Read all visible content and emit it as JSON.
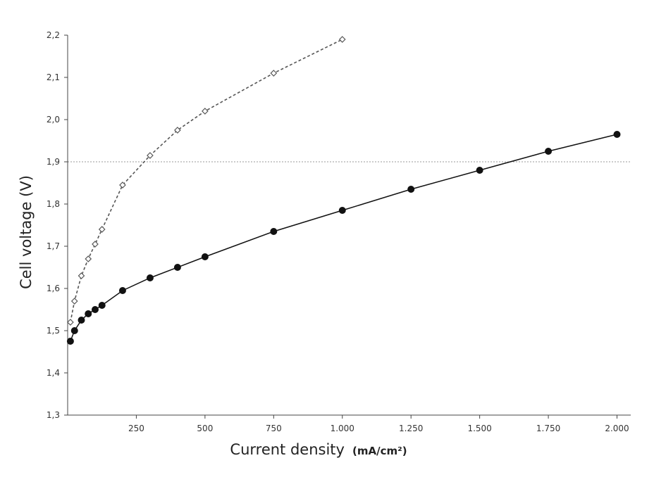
{
  "chart_data": {
    "type": "line",
    "xlabel": "Current density",
    "xlabel_unit": "(mA/cm²)",
    "ylabel": "Cell voltage (V)",
    "xlim": [
      0,
      2050
    ],
    "ylim": [
      1.3,
      2.2
    ],
    "x_ticks": [
      250,
      500,
      750,
      1000,
      1250,
      1500,
      1750,
      2000
    ],
    "x_tick_labels": [
      "250",
      "500",
      "750",
      "1.000",
      "1.250",
      "1.500",
      "1.750",
      "2.000"
    ],
    "y_ticks": [
      1.3,
      1.4,
      1.5,
      1.6,
      1.7,
      1.8,
      1.9,
      2.0,
      2.1,
      2.2
    ],
    "y_tick_labels": [
      "1,3",
      "1,4",
      "1,5",
      "1,6",
      "1,7",
      "1,8",
      "1,9",
      "2,0",
      "2,1",
      "2,2"
    ],
    "reference_line_y": 1.9,
    "grid": false,
    "series": [
      {
        "style": "dashed",
        "marker": "open-diamond",
        "color": "#555555",
        "x": [
          10,
          25,
          50,
          75,
          100,
          125,
          200,
          300,
          400,
          500,
          750,
          1000
        ],
        "y": [
          1.52,
          1.57,
          1.63,
          1.67,
          1.705,
          1.74,
          1.845,
          1.915,
          1.975,
          2.02,
          2.11,
          2.19
        ]
      },
      {
        "style": "solid",
        "marker": "filled-circle",
        "color": "#111111",
        "x": [
          10,
          25,
          50,
          75,
          100,
          125,
          200,
          300,
          400,
          500,
          750,
          1000,
          1250,
          1500,
          1750,
          2000
        ],
        "y": [
          1.475,
          1.5,
          1.525,
          1.54,
          1.55,
          1.56,
          1.595,
          1.625,
          1.65,
          1.675,
          1.735,
          1.785,
          1.835,
          1.88,
          1.925,
          1.965
        ]
      }
    ]
  }
}
